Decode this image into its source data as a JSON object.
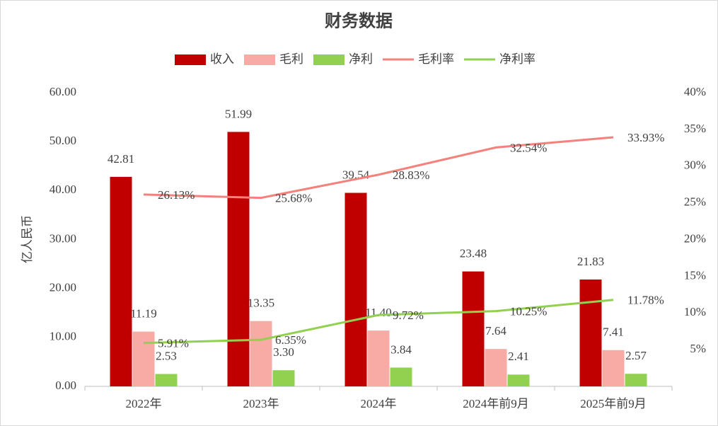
{
  "chart_data": {
    "type": "bar",
    "title": "财务数据",
    "y_label": "亿人民币",
    "categories": [
      "2022年",
      "2023年",
      "2024年",
      "2024年前9月",
      "2025年前9月"
    ],
    "series": [
      {
        "name": "收入",
        "type": "bar",
        "color": "#c00000",
        "values": [
          42.81,
          51.99,
          39.54,
          23.48,
          21.83
        ],
        "value_labels": [
          "42.81",
          "51.99",
          "39.54",
          "23.48",
          "21.83"
        ]
      },
      {
        "name": "毛利",
        "type": "bar",
        "color": "#f8aaa4",
        "values": [
          11.19,
          13.35,
          11.4,
          7.64,
          7.41
        ],
        "value_labels": [
          "11.19",
          "13.35",
          "11.40",
          "7.64",
          "7.41"
        ]
      },
      {
        "name": "净利",
        "type": "bar",
        "color": "#92d050",
        "values": [
          2.53,
          3.3,
          3.84,
          2.41,
          2.57
        ],
        "value_labels": [
          "2.53",
          "3.30",
          "3.84",
          "2.41",
          "2.57"
        ]
      },
      {
        "name": "毛利率",
        "type": "line",
        "axis": "y2",
        "color": "#f4817b",
        "label_color": "#e00000",
        "values": [
          26.13,
          25.68,
          28.83,
          32.54,
          33.93
        ],
        "value_labels": [
          "26.13%",
          "25.68%",
          "28.83%",
          "32.54%",
          "33.93%"
        ]
      },
      {
        "name": "净利率",
        "type": "line",
        "axis": "y2",
        "color": "#92d050",
        "label_color": "#1fb848",
        "values": [
          5.91,
          6.35,
          9.72,
          10.25,
          11.78
        ],
        "value_labels": [
          "5.91%",
          "6.35%",
          "9.72%",
          "10.25%",
          "11.78%"
        ]
      }
    ],
    "ylim": [
      0,
      60
    ],
    "yticks": [
      {
        "value": 0,
        "label": "0.00"
      },
      {
        "value": 10,
        "label": "10.00"
      },
      {
        "value": 20,
        "label": "20.00"
      },
      {
        "value": 30,
        "label": "30.00"
      },
      {
        "value": 40,
        "label": "40.00"
      },
      {
        "value": 50,
        "label": "50.00"
      },
      {
        "value": 60,
        "label": "60.00"
      }
    ],
    "y2lim": [
      0,
      40
    ],
    "y2ticks": [
      {
        "value": 5,
        "label": "5%"
      },
      {
        "value": 10,
        "label": "10%"
      },
      {
        "value": 15,
        "label": "15%"
      },
      {
        "value": 20,
        "label": "20%"
      },
      {
        "value": 25,
        "label": "25%"
      },
      {
        "value": 30,
        "label": "30%"
      },
      {
        "value": 35,
        "label": "35%"
      },
      {
        "value": 40,
        "label": "40%"
      }
    ],
    "grid": false
  }
}
